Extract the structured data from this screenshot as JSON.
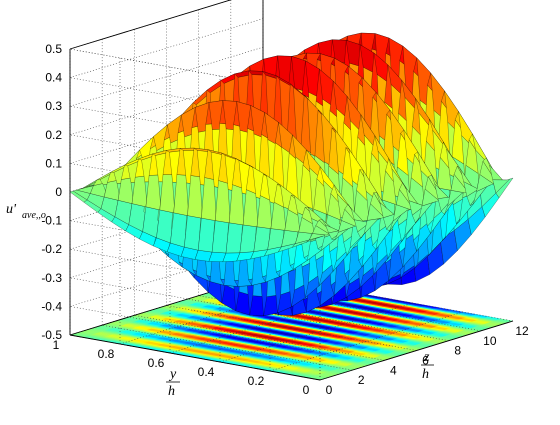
{
  "chart_data": {
    "type": "surface",
    "title": "",
    "zlabel": {
      "main": "u'",
      "sub": "ave,,o"
    },
    "ylabel": {
      "num": "y",
      "den": "h"
    },
    "xlabel": {
      "num": "z",
      "den": "h"
    },
    "z_ticks": [
      "0.5",
      "0.4",
      "0.3",
      "0.2",
      "0.1",
      "0",
      "-0.1",
      "-0.2",
      "-0.3",
      "-0.4",
      "-0.5"
    ],
    "y_ticks": [
      "1",
      "0.8",
      "0.6",
      "0.4",
      "0.2",
      "0"
    ],
    "x_ticks": [
      "0",
      "2",
      "4",
      "6",
      "8",
      "10",
      "12"
    ],
    "zlim": [
      -0.5,
      0.5
    ],
    "ylim": [
      0,
      1
    ],
    "xlim": [
      0,
      12
    ],
    "grid": true,
    "colormap": "jet",
    "contour_projection": "floor",
    "surface": {
      "description_values": {
        "periods_in_z": 7,
        "peak_amplitude": 0.45,
        "trough_amplitude": -0.45
      }
    }
  }
}
